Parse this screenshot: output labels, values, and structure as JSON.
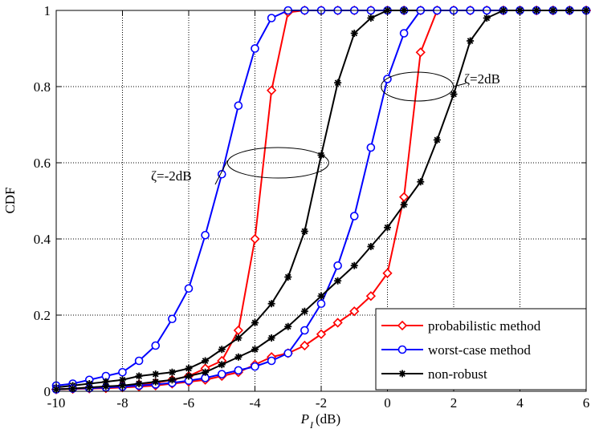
{
  "chart_data": {
    "type": "line",
    "xlabel_main": "P",
    "xlabel_sub": "I",
    "xlabel_unit": "(dB)",
    "ylabel": "CDF",
    "xlim": [
      -10,
      6
    ],
    "ylim": [
      0,
      1
    ],
    "x_ticks": [
      "-10",
      "-8",
      "-6",
      "-4",
      "-2",
      "0",
      "2",
      "4",
      "6"
    ],
    "y_ticks": [
      "0",
      "0.2",
      "0.4",
      "0.6",
      "0.8",
      "1"
    ],
    "grid": true,
    "legend_position": "bottom-right",
    "legend": [
      {
        "label": "probabilistic method",
        "color": "#ff0000",
        "marker": "diamond"
      },
      {
        "label": "worst-case method",
        "color": "#0000ff",
        "marker": "circle"
      },
      {
        "label": "non-robust",
        "color": "#000000",
        "marker": "star"
      }
    ],
    "annotations": [
      {
        "text": "ζ=-2dB",
        "ellipse_center": [
          -3.3,
          0.6
        ]
      },
      {
        "text": "ζ=2dB",
        "ellipse_center": [
          0.9,
          0.8
        ]
      }
    ],
    "series": [
      {
        "group": "ζ=-2dB",
        "style": "probabilistic method",
        "color": "#ff0000",
        "marker": "diamond",
        "x": [
          -10,
          -9.5,
          -9,
          -8.5,
          -8,
          -7.5,
          -7,
          -6.5,
          -6,
          -5.5,
          -5,
          -4.5,
          -4,
          -3.5,
          -3,
          -2.5,
          -2,
          -1.5,
          -1,
          -0.5,
          0,
          0.5,
          1,
          1.5,
          2,
          2.5,
          3,
          3.5,
          4,
          4.5,
          5,
          5.5,
          6
        ],
        "y": [
          0.005,
          0.007,
          0.01,
          0.012,
          0.015,
          0.018,
          0.022,
          0.03,
          0.04,
          0.06,
          0.08,
          0.16,
          0.4,
          0.79,
          0.995,
          1,
          1,
          1,
          1,
          1,
          1,
          1,
          1,
          1,
          1,
          1,
          1,
          1,
          1,
          1,
          1,
          1,
          1
        ]
      },
      {
        "group": "ζ=-2dB",
        "style": "worst-case method",
        "color": "#0000ff",
        "marker": "circle",
        "x": [
          -10,
          -9.5,
          -9,
          -8.5,
          -8,
          -7.5,
          -7,
          -6.5,
          -6,
          -5.5,
          -5,
          -4.5,
          -4,
          -3.5,
          -3,
          -2.5,
          -2,
          -1.5,
          -1,
          -0.5,
          0,
          0.5,
          1,
          1.5,
          2,
          2.5,
          3,
          3.5,
          4,
          4.5,
          5,
          5.5,
          6
        ],
        "y": [
          0.015,
          0.02,
          0.03,
          0.04,
          0.05,
          0.08,
          0.12,
          0.19,
          0.27,
          0.41,
          0.57,
          0.75,
          0.9,
          0.98,
          1,
          1,
          1,
          1,
          1,
          1,
          1,
          1,
          1,
          1,
          1,
          1,
          1,
          1,
          1,
          1,
          1,
          1,
          1
        ]
      },
      {
        "group": "ζ=-2dB",
        "style": "non-robust",
        "color": "#000000",
        "marker": "star",
        "x": [
          -10,
          -9.5,
          -9,
          -8.5,
          -8,
          -7.5,
          -7,
          -6.5,
          -6,
          -5.5,
          -5,
          -4.5,
          -4,
          -3.5,
          -3,
          -2.5,
          -2,
          -1.5,
          -1,
          -0.5,
          0,
          0.5,
          1,
          1.5,
          2,
          2.5,
          3,
          3.5,
          4,
          4.5,
          5,
          5.5,
          6
        ],
        "y": [
          0.01,
          0.015,
          0.02,
          0.025,
          0.03,
          0.04,
          0.045,
          0.05,
          0.06,
          0.08,
          0.11,
          0.14,
          0.18,
          0.23,
          0.3,
          0.42,
          0.62,
          0.81,
          0.94,
          0.98,
          1,
          1,
          1,
          1,
          1,
          1,
          1,
          1,
          1,
          1,
          1,
          1,
          1
        ]
      },
      {
        "group": "ζ=2dB",
        "style": "probabilistic method",
        "color": "#ff0000",
        "marker": "diamond",
        "x": [
          -10,
          -9.5,
          -9,
          -8.5,
          -8,
          -7.5,
          -7,
          -6.5,
          -6,
          -5.5,
          -5,
          -4.5,
          -4,
          -3.5,
          -3,
          -2.5,
          -2,
          -1.5,
          -1,
          -0.5,
          0,
          0.5,
          1,
          1.5,
          2,
          2.5,
          3,
          3.5,
          4,
          4.5,
          5,
          5.5,
          6
        ],
        "y": [
          0.005,
          0.006,
          0.007,
          0.008,
          0.01,
          0.012,
          0.015,
          0.02,
          0.025,
          0.03,
          0.04,
          0.05,
          0.07,
          0.09,
          0.1,
          0.12,
          0.15,
          0.18,
          0.21,
          0.25,
          0.31,
          0.51,
          0.89,
          1,
          1,
          1,
          1,
          1,
          1,
          1,
          1,
          1,
          1
        ]
      },
      {
        "group": "ζ=2dB",
        "style": "worst-case method",
        "color": "#0000ff",
        "marker": "circle",
        "x": [
          -10,
          -9.5,
          -9,
          -8.5,
          -8,
          -7.5,
          -7,
          -6.5,
          -6,
          -5.5,
          -5,
          -4.5,
          -4,
          -3.5,
          -3,
          -2.5,
          -2,
          -1.5,
          -1,
          -0.5,
          0,
          0.5,
          1,
          1.5,
          2,
          2.5,
          3,
          3.5,
          4,
          4.5,
          5,
          5.5,
          6
        ],
        "y": [
          0.005,
          0.007,
          0.008,
          0.01,
          0.012,
          0.015,
          0.018,
          0.022,
          0.028,
          0.035,
          0.045,
          0.055,
          0.065,
          0.08,
          0.1,
          0.16,
          0.23,
          0.33,
          0.46,
          0.64,
          0.82,
          0.94,
          1,
          1,
          1,
          1,
          1,
          1,
          1,
          1,
          1,
          1,
          1
        ]
      },
      {
        "group": "ζ=2dB",
        "style": "non-robust",
        "color": "#000000",
        "marker": "star",
        "x": [
          -10,
          -9.5,
          -9,
          -8.5,
          -8,
          -7.5,
          -7,
          -6.5,
          -6,
          -5.5,
          -5,
          -4.5,
          -4,
          -3.5,
          -3,
          -2.5,
          -2,
          -1.5,
          -1,
          -0.5,
          0,
          0.5,
          1,
          1.5,
          2,
          2.5,
          3,
          3.5,
          4,
          4.5,
          5,
          5.5,
          6
        ],
        "y": [
          0.005,
          0.007,
          0.01,
          0.013,
          0.015,
          0.02,
          0.025,
          0.03,
          0.04,
          0.05,
          0.07,
          0.09,
          0.11,
          0.14,
          0.17,
          0.21,
          0.25,
          0.29,
          0.33,
          0.38,
          0.43,
          0.49,
          0.55,
          0.66,
          0.78,
          0.92,
          0.98,
          1,
          1,
          1,
          1,
          1,
          1
        ]
      }
    ]
  }
}
